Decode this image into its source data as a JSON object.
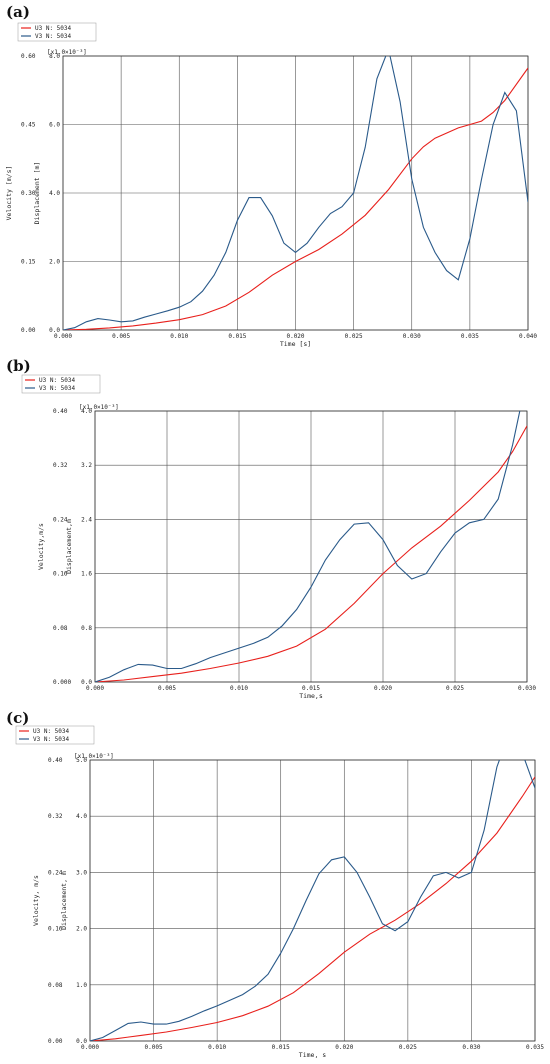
{
  "panel_labels": [
    "(a)",
    "(b)",
    "(c)"
  ],
  "chart_data": [
    {
      "type": "line",
      "panel": "(a)",
      "xlabel": "Time [s]",
      "ylabel_left": "Velocity [m/s]",
      "ylabel_right": "Displacement [m]",
      "right_multiplier": "[x1.0×10⁻³]",
      "xlim": [
        0,
        0.04
      ],
      "ylim_left": [
        0,
        0.6
      ],
      "ylim_right": [
        0,
        8
      ],
      "x_ticks": [
        "0.000",
        "0.005",
        "0.010",
        "0.015",
        "0.020",
        "0.025",
        "0.030",
        "0.035",
        "0.040"
      ],
      "y_ticks_left": [
        "0.00",
        "0.15",
        "0.30",
        "0.45",
        "0.60"
      ],
      "y_ticks_right": [
        "0.0",
        "2.0",
        "4.0",
        "6.0",
        "8.0"
      ],
      "grid": true,
      "legend_position": "top-left",
      "series": [
        {
          "name": "U3 N: 5034",
          "color": "#e8201c",
          "axis": "right",
          "x": [
            0,
            0.002,
            0.004,
            0.006,
            0.008,
            0.01,
            0.012,
            0.014,
            0.016,
            0.018,
            0.02,
            0.022,
            0.024,
            0.026,
            0.028,
            0.03,
            0.031,
            0.032,
            0.034,
            0.036,
            0.037,
            0.038,
            0.04
          ],
          "y": [
            0,
            0.02,
            0.06,
            0.12,
            0.2,
            0.3,
            0.45,
            0.7,
            1.1,
            1.6,
            2.0,
            2.35,
            2.8,
            3.35,
            4.1,
            5.0,
            5.35,
            5.6,
            5.9,
            6.1,
            6.35,
            6.7,
            7.65
          ]
        },
        {
          "name": "V3 N: 5034",
          "color": "#2a5a8a",
          "axis": "left",
          "x": [
            0,
            0.001,
            0.002,
            0.003,
            0.004,
            0.005,
            0.006,
            0.007,
            0.008,
            0.009,
            0.01,
            0.011,
            0.012,
            0.013,
            0.014,
            0.015,
            0.016,
            0.017,
            0.018,
            0.019,
            0.02,
            0.021,
            0.022,
            0.023,
            0.024,
            0.025,
            0.026,
            0.027,
            0.028,
            0.029,
            0.03,
            0.031,
            0.032,
            0.033,
            0.034,
            0.035,
            0.036,
            0.037,
            0.038,
            0.039,
            0.04
          ],
          "y": [
            0,
            0.005,
            0.018,
            0.025,
            0.022,
            0.018,
            0.02,
            0.028,
            0.035,
            0.042,
            0.05,
            0.062,
            0.085,
            0.12,
            0.17,
            0.24,
            0.29,
            0.29,
            0.25,
            0.19,
            0.17,
            0.19,
            0.225,
            0.255,
            0.27,
            0.3,
            0.4,
            0.55,
            0.615,
            0.5,
            0.33,
            0.225,
            0.17,
            0.13,
            0.11,
            0.2,
            0.33,
            0.45,
            0.52,
            0.48,
            0.28
          ]
        }
      ]
    },
    {
      "type": "line",
      "panel": "(b)",
      "xlabel": "Time,s",
      "ylabel_left": "Velocity,m/s",
      "ylabel_right": "Displacement,m",
      "right_multiplier": "[x1.0×10⁻³]",
      "xlim": [
        0,
        0.03
      ],
      "ylim_left": [
        0,
        0.4
      ],
      "ylim_right": [
        0,
        4
      ],
      "x_ticks": [
        "0.000",
        "0.005",
        "0.010",
        "0.015",
        "0.020",
        "0.025",
        "0.030"
      ],
      "y_ticks_left": [
        "0.000",
        "0.08",
        "0.16",
        "0.24",
        "0.32",
        "0.40"
      ],
      "y_ticks_right": [
        "0.0",
        "0.8",
        "1.6",
        "2.4",
        "3.2",
        "4.0"
      ],
      "grid": true,
      "legend_position": "top-left",
      "series": [
        {
          "name": "U3 N: 5034",
          "color": "#e8201c",
          "axis": "right",
          "x": [
            0,
            0.002,
            0.004,
            0.006,
            0.008,
            0.01,
            0.012,
            0.014,
            0.016,
            0.018,
            0.02,
            0.022,
            0.024,
            0.026,
            0.028,
            0.029,
            0.03
          ],
          "y": [
            0,
            0.03,
            0.08,
            0.13,
            0.2,
            0.28,
            0.38,
            0.53,
            0.78,
            1.16,
            1.6,
            1.98,
            2.3,
            2.68,
            3.1,
            3.4,
            3.78
          ]
        },
        {
          "name": "V3 N: 5034",
          "color": "#2a5a8a",
          "axis": "left",
          "x": [
            0,
            0.001,
            0.002,
            0.003,
            0.004,
            0.005,
            0.006,
            0.007,
            0.008,
            0.009,
            0.01,
            0.011,
            0.012,
            0.013,
            0.014,
            0.015,
            0.016,
            0.017,
            0.018,
            0.019,
            0.02,
            0.021,
            0.022,
            0.023,
            0.024,
            0.025,
            0.026,
            0.027,
            0.028,
            0.029,
            0.0295
          ],
          "y": [
            0,
            0.007,
            0.018,
            0.026,
            0.025,
            0.02,
            0.02,
            0.027,
            0.036,
            0.043,
            0.05,
            0.057,
            0.066,
            0.083,
            0.107,
            0.14,
            0.18,
            0.21,
            0.233,
            0.235,
            0.21,
            0.172,
            0.152,
            0.16,
            0.192,
            0.22,
            0.235,
            0.24,
            0.27,
            0.35,
            0.4
          ]
        }
      ]
    },
    {
      "type": "line",
      "panel": "(c)",
      "xlabel": "Time, s",
      "ylabel_left": "Velocity, m/s",
      "ylabel_right": "Displacement, m",
      "right_multiplier": "[x1.0×10⁻³]",
      "xlim": [
        0,
        0.035
      ],
      "ylim_left": [
        0,
        0.4
      ],
      "ylim_right": [
        0,
        5
      ],
      "x_ticks": [
        "0.000",
        "0.005",
        "0.010",
        "0.015",
        "0.020",
        "0.025",
        "0.030",
        "0.035"
      ],
      "y_ticks_left": [
        "0.00",
        "0.08",
        "0.16",
        "0.24",
        "0.32",
        "0.40"
      ],
      "y_ticks_right": [
        "0.0",
        "1.0",
        "2.0",
        "3.0",
        "4.0",
        "5.0"
      ],
      "grid": true,
      "legend_position": "top-left",
      "series": [
        {
          "name": "U3 N: 5034",
          "color": "#e8201c",
          "axis": "right",
          "x": [
            0,
            0.002,
            0.004,
            0.006,
            0.008,
            0.01,
            0.012,
            0.014,
            0.016,
            0.018,
            0.02,
            0.022,
            0.024,
            0.026,
            0.028,
            0.03,
            0.032,
            0.034,
            0.035
          ],
          "y": [
            0,
            0.04,
            0.1,
            0.16,
            0.24,
            0.33,
            0.45,
            0.62,
            0.86,
            1.2,
            1.58,
            1.9,
            2.15,
            2.45,
            2.8,
            3.2,
            3.7,
            4.35,
            4.7
          ]
        },
        {
          "name": "V3 N: 5034",
          "color": "#2a5a8a",
          "axis": "left",
          "x": [
            0,
            0.001,
            0.002,
            0.003,
            0.004,
            0.005,
            0.006,
            0.007,
            0.008,
            0.009,
            0.01,
            0.011,
            0.012,
            0.013,
            0.014,
            0.015,
            0.016,
            0.017,
            0.018,
            0.019,
            0.02,
            0.021,
            0.022,
            0.023,
            0.024,
            0.025,
            0.026,
            0.027,
            0.028,
            0.029,
            0.03,
            0.031,
            0.032,
            0.033,
            0.034,
            0.035
          ],
          "y": [
            0,
            0.005,
            0.015,
            0.025,
            0.027,
            0.024,
            0.024,
            0.028,
            0.035,
            0.043,
            0.05,
            0.058,
            0.066,
            0.078,
            0.095,
            0.125,
            0.16,
            0.2,
            0.238,
            0.258,
            0.262,
            0.24,
            0.205,
            0.167,
            0.157,
            0.17,
            0.205,
            0.235,
            0.24,
            0.232,
            0.24,
            0.3,
            0.39,
            0.44,
            0.41,
            0.36
          ]
        }
      ]
    }
  ]
}
